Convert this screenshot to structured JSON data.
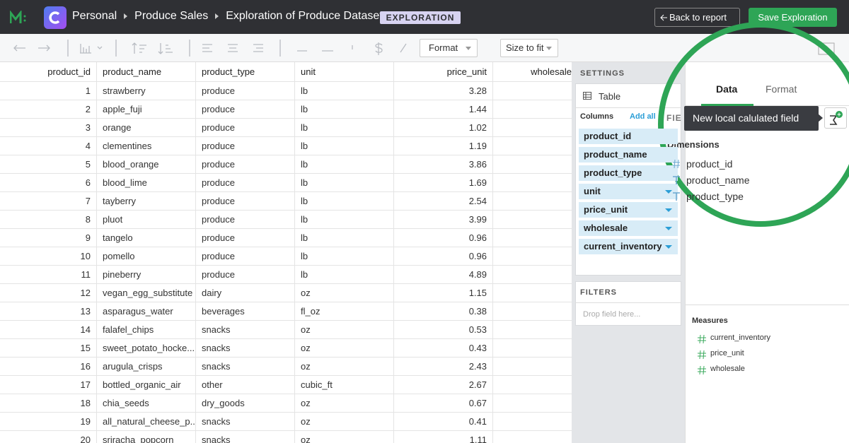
{
  "header": {
    "breadcrumb": [
      "Personal",
      "Produce Sales",
      "Exploration of Produce Dataset"
    ],
    "badge": "EXPLORATION",
    "back_button": "Back to report",
    "save_button": "Save Exploration"
  },
  "toolbar": {
    "format": "Format",
    "size": "Size to fit"
  },
  "table": {
    "columns": [
      "product_id",
      "product_name",
      "product_type",
      "unit",
      "price_unit",
      "wholesale"
    ],
    "rows": [
      [
        1,
        "strawberry",
        "produce",
        "lb",
        3.28
      ],
      [
        2,
        "apple_fuji",
        "produce",
        "lb",
        1.44
      ],
      [
        3,
        "orange",
        "produce",
        "lb",
        1.02
      ],
      [
        4,
        "clementines",
        "produce",
        "lb",
        1.19
      ],
      [
        5,
        "blood_orange",
        "produce",
        "lb",
        3.86
      ],
      [
        6,
        "blood_lime",
        "produce",
        "lb",
        1.69
      ],
      [
        7,
        "tayberry",
        "produce",
        "lb",
        2.54
      ],
      [
        8,
        "pluot",
        "produce",
        "lb",
        3.99
      ],
      [
        9,
        "tangelo",
        "produce",
        "lb",
        0.96
      ],
      [
        10,
        "pomello",
        "produce",
        "lb",
        0.96
      ],
      [
        11,
        "pineberry",
        "produce",
        "lb",
        4.89
      ],
      [
        12,
        "vegan_egg_substitute",
        "dairy",
        "oz",
        1.15
      ],
      [
        13,
        "asparagus_water",
        "beverages",
        "fl_oz",
        0.38
      ],
      [
        14,
        "falafel_chips",
        "snacks",
        "oz",
        0.53
      ],
      [
        15,
        "sweet_potato_hocke...",
        "snacks",
        "oz",
        0.43
      ],
      [
        16,
        "arugula_crisps",
        "snacks",
        "oz",
        2.43
      ],
      [
        17,
        "bottled_organic_air",
        "other",
        "cubic_ft",
        2.67
      ],
      [
        18,
        "chia_seeds",
        "dry_goods",
        "oz",
        0.67
      ],
      [
        19,
        "all_natural_cheese_p...",
        "snacks",
        "oz",
        0.41
      ],
      [
        20,
        "sriracha_popcorn",
        "snacks",
        "oz",
        1.11
      ]
    ]
  },
  "settings": {
    "title": "SETTINGS",
    "viz": "Table",
    "columns_label": "Columns",
    "add_all": "Add all",
    "columns": [
      "product_id",
      "product_name",
      "product_type",
      "unit",
      "price_unit",
      "wholesale",
      "current_inventory"
    ],
    "filters_title": "FILTERS",
    "filters_placeholder": "Drop field here..."
  },
  "fields": {
    "tabs": [
      "Data",
      "Format"
    ],
    "section": "FIE",
    "tooltip": "New local calulated field",
    "dimensions_title": "Dimensions",
    "dimensions": [
      "product_id",
      "product_name",
      "product_type"
    ],
    "measures_title": "Measures",
    "measures": [
      "current_inventory",
      "price_unit",
      "wholesale"
    ]
  }
}
